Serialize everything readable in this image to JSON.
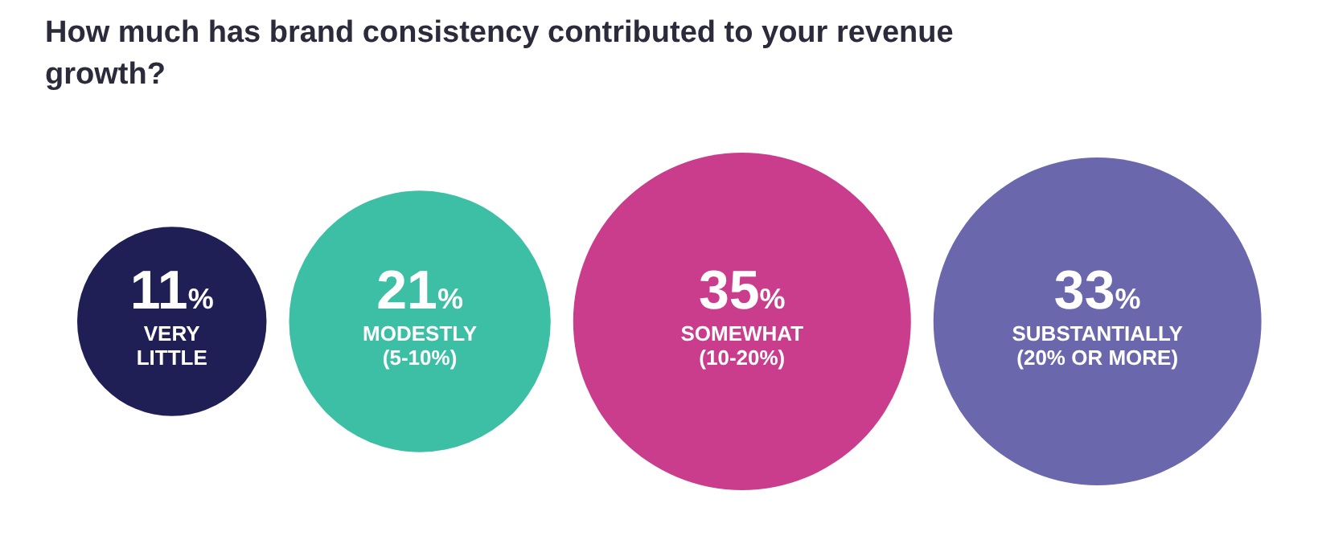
{
  "chart_data": {
    "type": "other",
    "title": "How much has brand consistency contributed to your revenue growth?",
    "categories": [
      "VERY LITTLE",
      "MODESTLY (5-10%)",
      "SOMEWHAT (10-20%)",
      "SUBSTANTIALLY (20% OR MORE)"
    ],
    "values": [
      11,
      21,
      35,
      33
    ],
    "colors": [
      "#1f1f55",
      "#3dbfa5",
      "#c93d8c",
      "#6b67ad"
    ],
    "value_labels": [
      "11%",
      "21%",
      "35%",
      "33%"
    ]
  }
}
